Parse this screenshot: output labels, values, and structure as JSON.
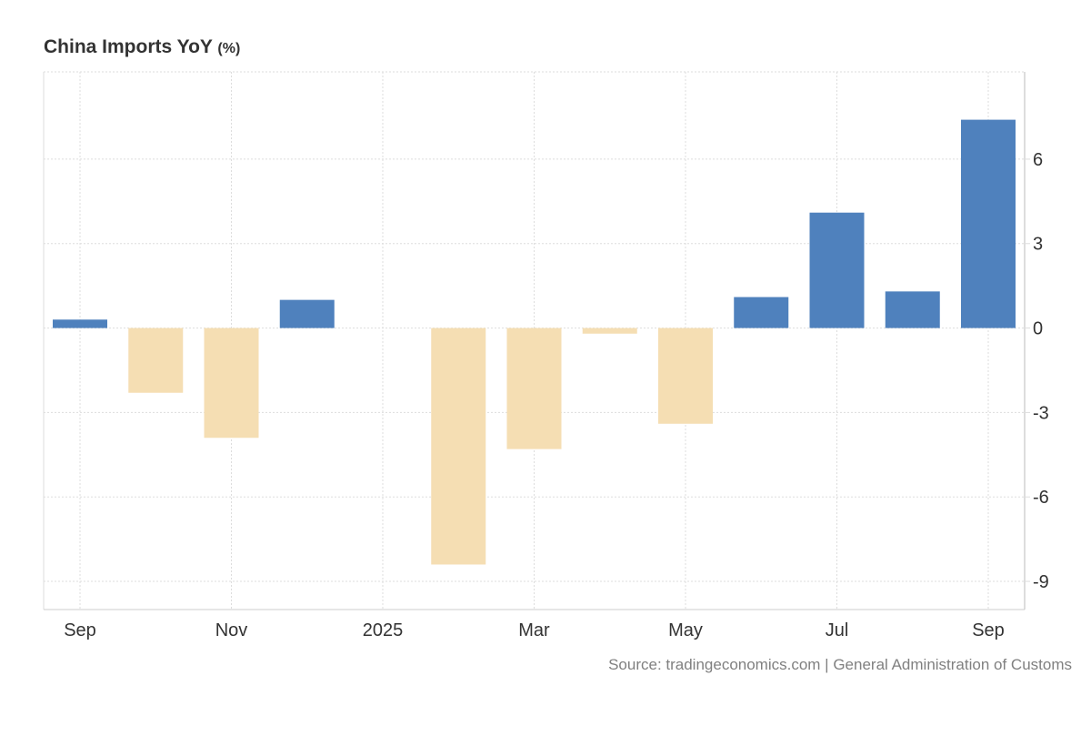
{
  "chart_data": {
    "type": "bar",
    "title": "China Imports YoY",
    "title_unit": "(%)",
    "xlabel": "",
    "ylabel": "",
    "ylim": [
      -10,
      9.1
    ],
    "y_ticks": [
      6,
      3,
      0,
      -3,
      -6,
      -9
    ],
    "x_tick_labels": [
      {
        "label": "Sep",
        "month_index": 0
      },
      {
        "label": "Nov",
        "month_index": 2
      },
      {
        "label": "2025",
        "month_index": 4
      },
      {
        "label": "Mar",
        "month_index": 6
      },
      {
        "label": "May",
        "month_index": 8
      },
      {
        "label": "Jul",
        "month_index": 10
      },
      {
        "label": "Sep",
        "month_index": 12
      }
    ],
    "categories": [
      "Sep 2024",
      "Oct 2024",
      "Nov 2024",
      "Dec 2024",
      "Feb 2025",
      "Mar 2025",
      "Apr 2025",
      "May 2025",
      "Jun 2025",
      "Jul 2025",
      "Aug 2025",
      "Sep 2025"
    ],
    "month_index": [
      0,
      1,
      2,
      3,
      5,
      6,
      7,
      8,
      9,
      10,
      11,
      12
    ],
    "values": [
      0.3,
      -2.3,
      -3.9,
      1.0,
      -8.4,
      -4.3,
      -0.2,
      -3.4,
      1.1,
      4.1,
      1.3,
      7.4
    ],
    "grid": true,
    "legend": "none",
    "colors": {
      "positive": "#4f81bd",
      "negative": "#f5deb3"
    }
  },
  "source": "Source: tradingeconomics.com | General Administration of Customs"
}
